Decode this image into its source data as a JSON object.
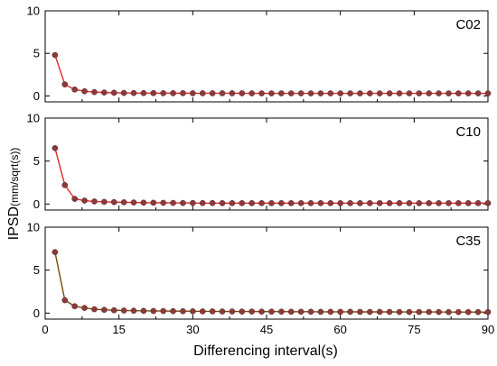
{
  "chart_data": {
    "type": "line",
    "xlabel": "Differencing interval(s)",
    "ylabel_main": "IPSD",
    "ylabel_unit": "(mm/sqrt(s))",
    "xlim": [
      0,
      90
    ],
    "xticks": [
      0,
      15,
      30,
      45,
      60,
      75,
      90
    ],
    "ylim": [
      -0.7,
      10
    ],
    "yticks": [
      0,
      5,
      10
    ],
    "x": [
      2,
      4,
      6,
      8,
      10,
      12,
      14,
      16,
      18,
      20,
      22,
      24,
      26,
      28,
      30,
      32,
      34,
      36,
      38,
      40,
      42,
      44,
      46,
      48,
      50,
      52,
      54,
      56,
      58,
      60,
      62,
      64,
      66,
      68,
      70,
      72,
      74,
      76,
      78,
      80,
      82,
      84,
      86,
      88,
      90
    ],
    "panels": [
      {
        "label": "C02",
        "line_color": "#e0292c",
        "marker_color": "#8b3a3a",
        "values": [
          4.8,
          1.35,
          0.75,
          0.55,
          0.45,
          0.4,
          0.37,
          0.35,
          0.34,
          0.33,
          0.33,
          0.32,
          0.32,
          0.32,
          0.31,
          0.31,
          0.31,
          0.31,
          0.31,
          0.31,
          0.3,
          0.3,
          0.3,
          0.3,
          0.3,
          0.3,
          0.3,
          0.3,
          0.3,
          0.3,
          0.3,
          0.3,
          0.3,
          0.3,
          0.3,
          0.3,
          0.3,
          0.3,
          0.3,
          0.3,
          0.3,
          0.3,
          0.3,
          0.3,
          0.3
        ]
      },
      {
        "label": "C10",
        "line_color": "#e0292c",
        "marker_color": "#8b3a3a",
        "values": [
          6.5,
          2.2,
          0.6,
          0.4,
          0.3,
          0.25,
          0.22,
          0.2,
          0.18,
          0.16,
          0.15,
          0.14,
          0.13,
          0.12,
          0.12,
          0.11,
          0.11,
          0.1,
          0.1,
          0.1,
          0.1,
          0.1,
          0.1,
          0.1,
          0.1,
          0.1,
          0.1,
          0.1,
          0.1,
          0.1,
          0.1,
          0.1,
          0.1,
          0.1,
          0.1,
          0.1,
          0.1,
          0.1,
          0.1,
          0.1,
          0.1,
          0.1,
          0.1,
          0.1,
          0.1
        ]
      },
      {
        "label": "C35",
        "line_color": "#7a4a10",
        "marker_color": "#8b3a3a",
        "values": [
          7.1,
          1.5,
          0.8,
          0.6,
          0.45,
          0.38,
          0.33,
          0.3,
          0.28,
          0.26,
          0.25,
          0.24,
          0.23,
          0.22,
          0.21,
          0.2,
          0.2,
          0.19,
          0.19,
          0.18,
          0.18,
          0.17,
          0.17,
          0.17,
          0.16,
          0.16,
          0.16,
          0.15,
          0.15,
          0.15,
          0.15,
          0.14,
          0.14,
          0.14,
          0.14,
          0.13,
          0.13,
          0.13,
          0.13,
          0.13,
          0.12,
          0.12,
          0.12,
          0.12,
          0.12
        ]
      }
    ]
  }
}
